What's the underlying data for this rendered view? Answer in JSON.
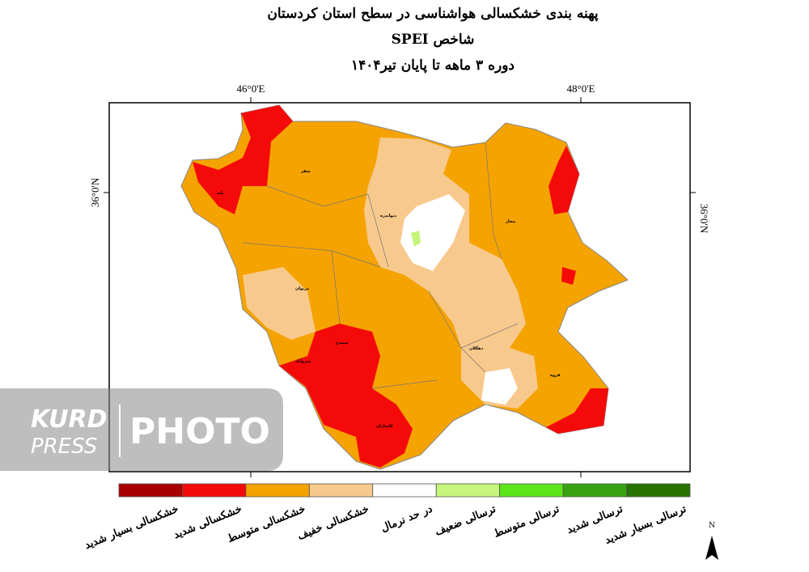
{
  "header": {
    "title": "پهنه بندی خشکسالی هواشناسی در سطح استان کردستان",
    "subtitle": "شاخص SPEI",
    "period": "دوره  ۳  ماهه تا پایان  تیر۱۴۰۴"
  },
  "map": {
    "x_ticks": [
      "46°0'E",
      "48°0'E"
    ],
    "y_tick_left": "36°0'N",
    "y_tick_right": "36°0'N",
    "cities": [
      "سقز",
      "بانه",
      "دیواندره",
      "بیجار",
      "مریوان",
      "سنندج",
      "سروآباد",
      "دهگلان",
      "قروه",
      "کامیاران"
    ],
    "north": "N"
  },
  "legend": [
    {
      "label": "خشکسالی بسیار شدید",
      "color": "#a80000"
    },
    {
      "label": "خشکسالی شدید",
      "color": "#f50a0a"
    },
    {
      "label": "خشکسالی متوسط",
      "color": "#f5a300"
    },
    {
      "label": "خشکسالی خفیف",
      "color": "#f8c98c"
    },
    {
      "label": "در حد نرمال",
      "color": "#ffffff"
    },
    {
      "label": "ترسالی ضعیف",
      "color": "#c5f57a"
    },
    {
      "label": "ترسالی متوسط",
      "color": "#5ce51a"
    },
    {
      "label": "ترسالی شدید",
      "color": "#37a312"
    },
    {
      "label": "ترسالی بسیار شدید",
      "color": "#267300"
    }
  ],
  "watermark": {
    "brand_top": "KURD",
    "brand_bottom": "PRESS",
    "text": "PHOTO"
  }
}
